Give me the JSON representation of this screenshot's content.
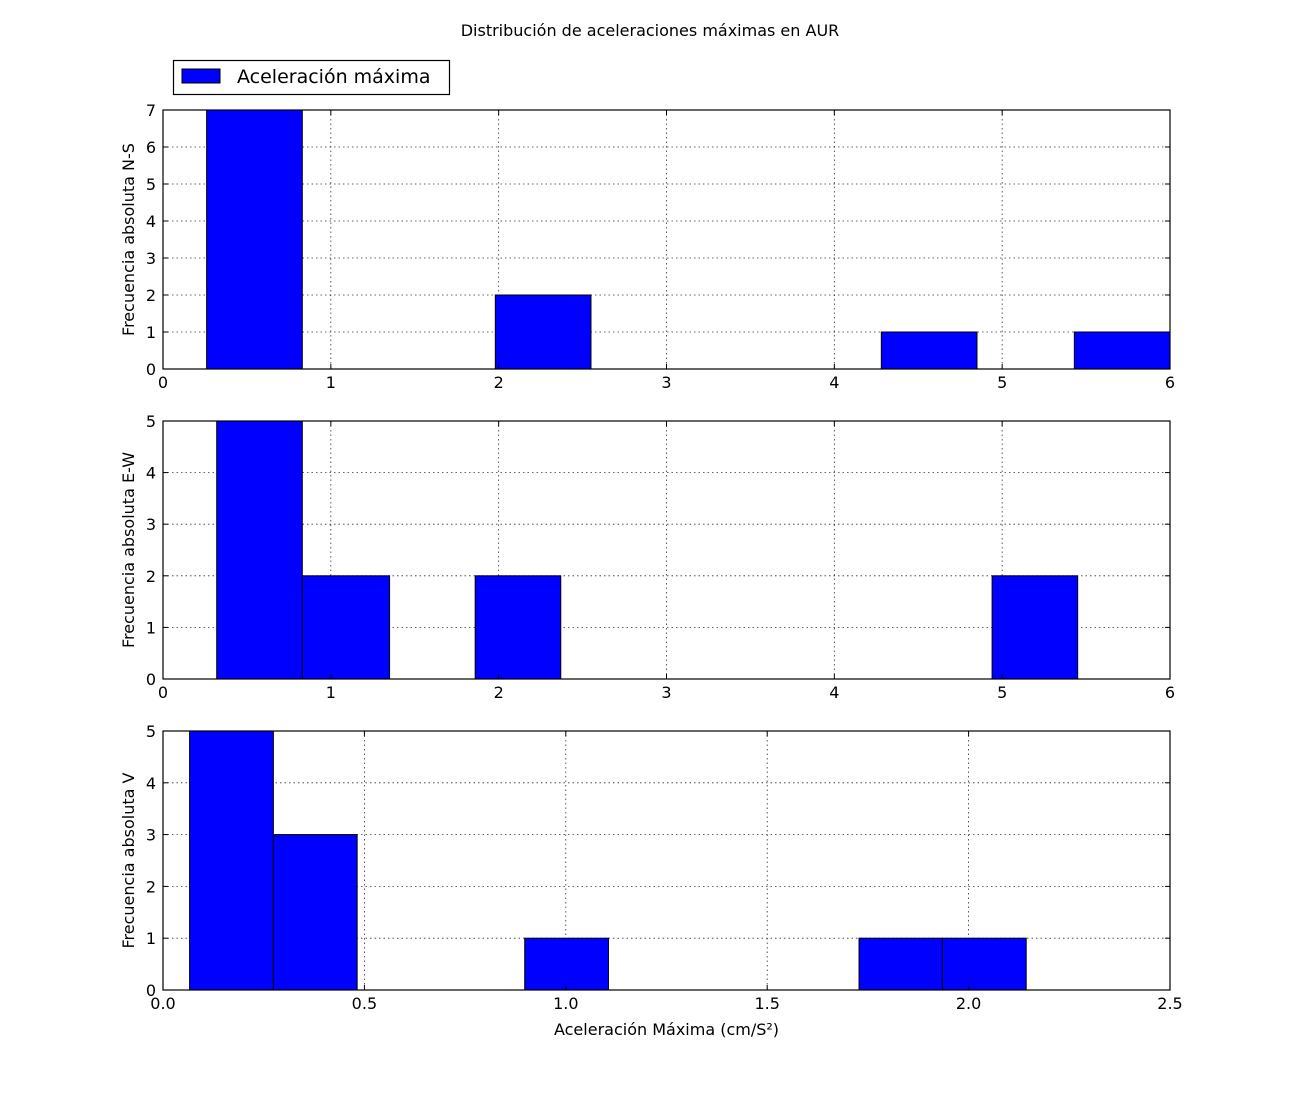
{
  "figure": {
    "title": "Distribución de aceleraciones máximas en AUR",
    "legend": {
      "label": "Aceleración máxima",
      "placement": "upper-left above first panel",
      "color": "#0000ff"
    }
  },
  "chart_data": [
    {
      "type": "bar",
      "name": "N-S",
      "ylabel": "Frecuencia absoluta N-S",
      "xlabel": "",
      "xlim": [
        0,
        6
      ],
      "ylim": [
        0,
        7
      ],
      "xticks": [
        "0",
        "1",
        "2",
        "3",
        "4",
        "5",
        "6"
      ],
      "yticks": [
        "0",
        "1",
        "2",
        "3",
        "4",
        "5",
        "6",
        "7"
      ],
      "grid": true,
      "color": "#0000ff",
      "bins": [
        {
          "x0": 0.26,
          "x1": 0.83,
          "count": 7
        },
        {
          "x0": 1.98,
          "x1": 2.55,
          "count": 2
        },
        {
          "x0": 4.28,
          "x1": 4.85,
          "count": 1
        },
        {
          "x0": 5.43,
          "x1": 6.0,
          "count": 1
        }
      ]
    },
    {
      "type": "bar",
      "name": "E-W",
      "ylabel": "Frecuencia absoluta E-W",
      "xlabel": "",
      "xlim": [
        0,
        6
      ],
      "ylim": [
        0,
        5
      ],
      "xticks": [
        "0",
        "1",
        "2",
        "3",
        "4",
        "5",
        "6"
      ],
      "yticks": [
        "0",
        "1",
        "2",
        "3",
        "4",
        "5"
      ],
      "grid": true,
      "color": "#0000ff",
      "bins": [
        {
          "x0": 0.32,
          "x1": 0.83,
          "count": 5
        },
        {
          "x0": 0.83,
          "x1": 1.35,
          "count": 2
        },
        {
          "x0": 1.86,
          "x1": 2.37,
          "count": 2
        },
        {
          "x0": 4.94,
          "x1": 5.45,
          "count": 2
        }
      ]
    },
    {
      "type": "bar",
      "name": "V",
      "ylabel": "Frecuencia absoluta V",
      "xlabel": "Aceleración Máxima (cm/S²)",
      "xlim": [
        0,
        2.5
      ],
      "ylim": [
        0,
        5
      ],
      "xticks": [
        "0.0",
        "0.5",
        "1.0",
        "1.5",
        "2.0",
        "2.5"
      ],
      "yticks": [
        "0",
        "1",
        "2",
        "3",
        "4",
        "5"
      ],
      "grid": true,
      "color": "#0000ff",
      "bins": [
        {
          "x0": 0.066,
          "x1": 0.274,
          "count": 5
        },
        {
          "x0": 0.274,
          "x1": 0.482,
          "count": 3
        },
        {
          "x0": 0.898,
          "x1": 1.106,
          "count": 1
        },
        {
          "x0": 1.728,
          "x1": 1.935,
          "count": 1
        },
        {
          "x0": 1.935,
          "x1": 2.143,
          "count": 1
        }
      ]
    }
  ]
}
